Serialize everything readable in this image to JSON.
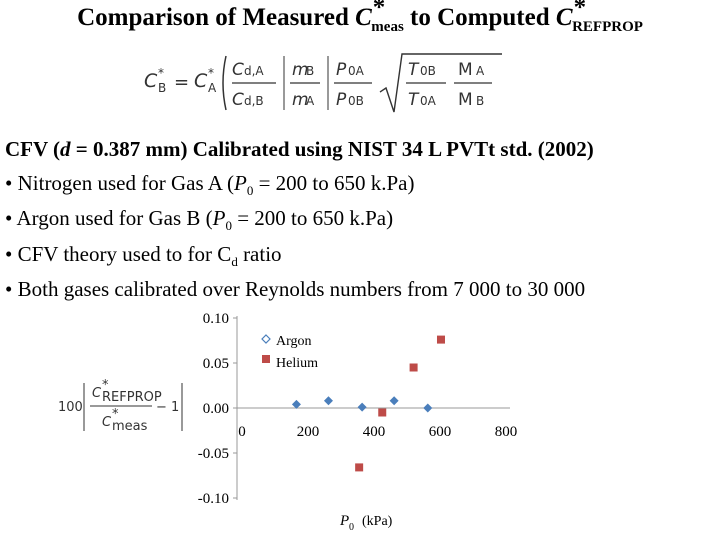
{
  "title": {
    "before": "Comparison of Measured ",
    "sym1": "C",
    "star": "*",
    "sub1": "meas",
    "middle": " to Computed ",
    "sym2": "C",
    "sub2": "REFPROP"
  },
  "formula": {
    "lhs_sym": "C",
    "lhs_star": "*",
    "lhs_sub": "B",
    "equals": "=",
    "rhs_sym": "C",
    "rhs_star": "*",
    "rhs_sub": "A",
    "f1_num": "C",
    "f1_num_sub": "d,A",
    "f1_den": "C",
    "f1_den_sub": "d,B",
    "f2_num": "m",
    "f2_num_sub": "B",
    "f2_den": "m",
    "f2_den_sub": "A",
    "f3_num": "P",
    "f3_num_sub": "0A",
    "f3_den": "P",
    "f3_den_sub": "0B",
    "f4_num": "T",
    "f4_num_sub": "0B",
    "f4_den": "T",
    "f4_den_sub": "0A",
    "f5_num": "M",
    "f5_num_sub": "A",
    "f5_den": "M",
    "f5_den_sub": "B"
  },
  "info": {
    "heading_pre": "CFV (",
    "heading_d": "d",
    "heading_post": " = 0.387 mm) Calibrated using NIST 34 L PVTt std. (2002)",
    "bullet": "•",
    "b1_pre": "Nitrogen used for Gas A (",
    "b1_P": "P",
    "b1_sub": "0",
    "b1_post": " = 200 to 650 k.Pa)",
    "b2_pre": "Argon used for Gas B (",
    "b2_P": "P",
    "b2_sub": "0",
    "b2_post": " = 200 to 650 k.Pa)",
    "b3_pre": "CFV theory used to for C",
    "b3_sub": "d",
    "b3_post": " ratio",
    "b4": "Both gases calibrated over Reynolds numbers from 7 000 to 30 000"
  },
  "ylabel": {
    "factor": "100",
    "num_sym": "C",
    "num_star": "*",
    "num_sub": "REFPROP",
    "den_sym": "C",
    "den_star": "*",
    "den_sub": "meas",
    "minus_one": "− 1"
  },
  "chart_data": {
    "type": "scatter",
    "xlabel_sym": "P",
    "xlabel_sub": "0",
    "xlabel_unit": "(kPa)",
    "xlim": [
      0,
      800
    ],
    "ylim": [
      -0.1,
      0.1
    ],
    "x_ticks": [
      "0",
      "200",
      "400",
      "600",
      "800"
    ],
    "y_ticks": [
      "0.10",
      "0.05",
      "0.00",
      "-0.05",
      "-0.10"
    ],
    "legend_position": "top-right",
    "grid": false,
    "series": [
      {
        "name": "Argon",
        "color": "#4a7ebb",
        "marker": "diamond",
        "points": [
          [
            165,
            0.004
          ],
          [
            262,
            0.008
          ],
          [
            364,
            0.001
          ],
          [
            461,
            0.008
          ],
          [
            563,
            0.0
          ]
        ]
      },
      {
        "name": "Helium",
        "color": "#be4b48",
        "marker": "square",
        "points": [
          [
            355,
            -0.066
          ],
          [
            425,
            -0.005
          ],
          [
            520,
            0.045
          ],
          [
            603,
            0.076
          ]
        ]
      }
    ]
  }
}
